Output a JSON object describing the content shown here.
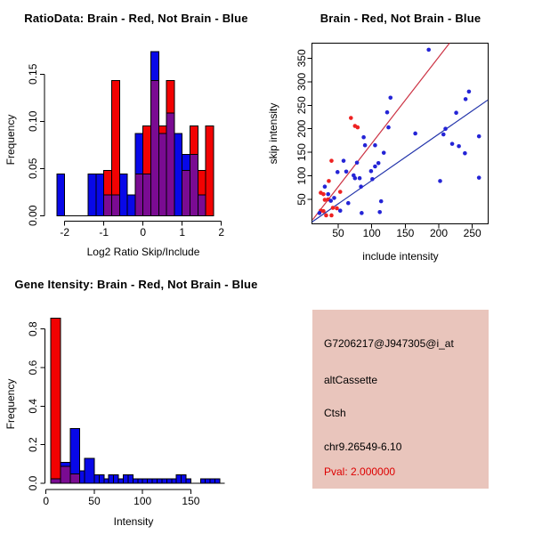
{
  "figure": {
    "background": "#ffffff",
    "colors": {
      "hist_blue": "#0808e8",
      "hist_red": "#f20202",
      "hist_overlap": "#7a0b92",
      "bar_border": "#000000",
      "scatter_blue": "#2424d6",
      "scatter_red": "#ee2222",
      "line_blue": "#2233aa",
      "line_red": "#cc3344",
      "axis": "#000000",
      "info_bg": "#e9c5bc",
      "pval_red": "#dd0000"
    }
  },
  "chart_data": [
    {
      "id": "ratio_hist",
      "type": "bar",
      "title": "RatioData: Brain - Red, Not Brain - Blue",
      "xlabel": "Log2 Ratio Skip/Include",
      "ylabel": "Frequency",
      "xticks": [
        -2,
        -1,
        0,
        1,
        2
      ],
      "xtick_labels": [
        "-2",
        "-1",
        "0",
        "1",
        "2"
      ],
      "yticks": [
        0,
        0.05,
        0.1,
        0.15
      ],
      "ytick_labels": [
        "0.00",
        "0.05",
        "0.10",
        "0.15"
      ],
      "xlim": [
        -2.45,
        2.1
      ],
      "ylim": [
        0,
        0.175
      ],
      "grid": false,
      "legend": "none",
      "series_note": "blue = Not Brain frequency, red = Brain frequency, overlap drawn purple",
      "bars": [
        {
          "x0": -2.2,
          "x1": -2.0,
          "blue": 0.044,
          "red": 0
        },
        {
          "x0": -1.4,
          "x1": -1.2,
          "blue": 0.044,
          "red": 0
        },
        {
          "x0": -1.2,
          "x1": -1.0,
          "blue": 0.044,
          "red": 0
        },
        {
          "x0": -1.0,
          "x1": -0.8,
          "blue": 0.022,
          "red": 0.048
        },
        {
          "x0": -0.8,
          "x1": -0.6,
          "blue": 0.022,
          "red": 0.143
        },
        {
          "x0": -0.6,
          "x1": -0.4,
          "blue": 0.044,
          "red": 0
        },
        {
          "x0": -0.4,
          "x1": -0.2,
          "blue": 0.022,
          "red": 0
        },
        {
          "x0": -0.2,
          "x1": 0.0,
          "blue": 0.087,
          "red": 0.044
        },
        {
          "x0": 0.0,
          "x1": 0.2,
          "blue": 0.044,
          "red": 0.095
        },
        {
          "x0": 0.2,
          "x1": 0.4,
          "blue": 0.174,
          "red": 0.143
        },
        {
          "x0": 0.4,
          "x1": 0.6,
          "blue": 0.087,
          "red": 0.095
        },
        {
          "x0": 0.6,
          "x1": 0.8,
          "blue": 0.109,
          "red": 0.143
        },
        {
          "x0": 0.8,
          "x1": 1.0,
          "blue": 0.087,
          "red": 0
        },
        {
          "x0": 1.0,
          "x1": 1.2,
          "blue": 0.065,
          "red": 0.048
        },
        {
          "x0": 1.2,
          "x1": 1.4,
          "blue": 0.065,
          "red": 0.095
        },
        {
          "x0": 1.4,
          "x1": 1.6,
          "blue": 0.022,
          "red": 0.048
        },
        {
          "x0": 1.6,
          "x1": 1.8,
          "blue": 0,
          "red": 0.095
        }
      ]
    },
    {
      "id": "skip_include_scatter",
      "type": "scatter",
      "title": "Brain - Red, Not Brain - Blue",
      "xlabel": "include intensity",
      "ylabel": "skip intensity",
      "xticks": [
        50,
        100,
        150,
        200,
        250
      ],
      "xtick_labels": [
        "50",
        "100",
        "150",
        "200",
        "250"
      ],
      "yticks": [
        50,
        100,
        150,
        200,
        250,
        300,
        350
      ],
      "ytick_labels": [
        "50",
        "100",
        "150",
        "200",
        "250",
        "300",
        "350"
      ],
      "xlim": [
        11,
        273
      ],
      "ylim": [
        -2,
        382
      ],
      "grid": false,
      "legend": "none",
      "series": [
        {
          "name": "Brain",
          "color_key": "scatter_red",
          "points": [
            [
              69,
              223
            ],
            [
              75,
              206
            ],
            [
              79,
              203
            ],
            [
              40,
              132
            ],
            [
              36,
              89
            ],
            [
              53,
              66
            ],
            [
              24,
              64
            ],
            [
              28,
              61
            ],
            [
              30,
              49
            ],
            [
              35,
              50
            ],
            [
              42,
              32
            ],
            [
              48,
              31
            ],
            [
              24,
              26
            ],
            [
              28,
              25
            ],
            [
              32,
              16
            ],
            [
              40,
              16
            ]
          ]
        },
        {
          "name": "Not Brain",
          "color_key": "scatter_blue",
          "points": [
            [
              185,
              368
            ],
            [
              245,
              279
            ],
            [
              240,
              263
            ],
            [
              128,
              266
            ],
            [
              123,
              235
            ],
            [
              125,
              203
            ],
            [
              226,
              234
            ],
            [
              165,
              190
            ],
            [
              210,
              200
            ],
            [
              207,
              188
            ],
            [
              260,
              184
            ],
            [
              220,
              168
            ],
            [
              88,
              182
            ],
            [
              90,
              165
            ],
            [
              105,
              165
            ],
            [
              230,
              163
            ],
            [
              239,
              148
            ],
            [
              118,
              149
            ],
            [
              58,
              132
            ],
            [
              78,
              128
            ],
            [
              110,
              127
            ],
            [
              105,
              120
            ],
            [
              73,
              101
            ],
            [
              75,
              95
            ],
            [
              82,
              95
            ],
            [
              49,
              108
            ],
            [
              62,
              109
            ],
            [
              99,
              110
            ],
            [
              101,
              93
            ],
            [
              84,
              77
            ],
            [
              260,
              96
            ],
            [
              202,
              89
            ],
            [
              30,
              77
            ],
            [
              35,
              61
            ],
            [
              44,
              53
            ],
            [
              39,
              47
            ],
            [
              65,
              42
            ],
            [
              114,
              46
            ],
            [
              85,
              21
            ],
            [
              112,
              23
            ],
            [
              53,
              26
            ],
            [
              22,
              21
            ]
          ]
        }
      ],
      "fit_lines": [
        {
          "name": "brain-fit",
          "color_key": "line_red",
          "x1": 12,
          "y1": 7,
          "x2": 216,
          "y2": 382
        },
        {
          "name": "not-brain-fit",
          "color_key": "line_blue",
          "x1": 11,
          "y1": 2,
          "x2": 273,
          "y2": 261
        }
      ]
    },
    {
      "id": "gene_intensity_hist",
      "type": "bar",
      "title": "Gene Itensity: Brain - Red, Not Brain - Blue",
      "xlabel": "Intensity",
      "ylabel": "Frequency",
      "xticks": [
        0,
        50,
        100,
        150
      ],
      "xtick_labels": [
        "0",
        "50",
        "100",
        "150"
      ],
      "yticks": [
        0,
        0.2,
        0.4,
        0.6,
        0.8
      ],
      "ytick_labels": [
        "0.0",
        "0.2",
        "0.4",
        "0.6",
        "0.8"
      ],
      "xlim": [
        0,
        185
      ],
      "ylim": [
        0,
        0.9
      ],
      "grid": false,
      "legend": "none",
      "series_note": "blue = Not Brain frequency, red = Brain frequency, overlap drawn purple",
      "bars": [
        {
          "x0": 5,
          "x1": 15,
          "blue": 0.022,
          "red": 0.857
        },
        {
          "x0": 15,
          "x1": 25,
          "blue": 0.109,
          "red": 0.087
        },
        {
          "x0": 25,
          "x1": 35,
          "blue": 0.283,
          "red": 0.048
        },
        {
          "x0": 35,
          "x1": 40,
          "blue": 0.065,
          "red": 0
        },
        {
          "x0": 40,
          "x1": 50,
          "blue": 0.13,
          "red": 0
        },
        {
          "x0": 50,
          "x1": 55,
          "blue": 0.043,
          "red": 0
        },
        {
          "x0": 55,
          "x1": 60,
          "blue": 0.043,
          "red": 0
        },
        {
          "x0": 60,
          "x1": 65,
          "blue": 0.022,
          "red": 0
        },
        {
          "x0": 65,
          "x1": 70,
          "blue": 0.043,
          "red": 0
        },
        {
          "x0": 70,
          "x1": 75,
          "blue": 0.043,
          "red": 0
        },
        {
          "x0": 75,
          "x1": 80,
          "blue": 0.022,
          "red": 0
        },
        {
          "x0": 80,
          "x1": 85,
          "blue": 0.043,
          "red": 0
        },
        {
          "x0": 85,
          "x1": 90,
          "blue": 0.043,
          "red": 0
        },
        {
          "x0": 90,
          "x1": 95,
          "blue": 0.022,
          "red": 0
        },
        {
          "x0": 95,
          "x1": 100,
          "blue": 0.022,
          "red": 0
        },
        {
          "x0": 100,
          "x1": 105,
          "blue": 0.022,
          "red": 0
        },
        {
          "x0": 105,
          "x1": 110,
          "blue": 0.022,
          "red": 0
        },
        {
          "x0": 110,
          "x1": 115,
          "blue": 0.022,
          "red": 0
        },
        {
          "x0": 115,
          "x1": 120,
          "blue": 0.022,
          "red": 0
        },
        {
          "x0": 120,
          "x1": 125,
          "blue": 0.022,
          "red": 0
        },
        {
          "x0": 125,
          "x1": 130,
          "blue": 0.022,
          "red": 0
        },
        {
          "x0": 130,
          "x1": 135,
          "blue": 0.022,
          "red": 0
        },
        {
          "x0": 135,
          "x1": 140,
          "blue": 0.043,
          "red": 0
        },
        {
          "x0": 140,
          "x1": 145,
          "blue": 0.043,
          "red": 0
        },
        {
          "x0": 145,
          "x1": 150,
          "blue": 0.022,
          "red": 0
        },
        {
          "x0": 160,
          "x1": 165,
          "blue": 0.022,
          "red": 0
        },
        {
          "x0": 165,
          "x1": 170,
          "blue": 0.022,
          "red": 0
        },
        {
          "x0": 170,
          "x1": 175,
          "blue": 0.022,
          "red": 0
        },
        {
          "x0": 175,
          "x1": 180,
          "blue": 0.022,
          "red": 0
        }
      ]
    }
  ],
  "info_panel": {
    "background": "#e9c5bc",
    "lines": [
      {
        "text": "G7206217@J947305@i_at",
        "color": "#000000"
      },
      {
        "text": "altCassette",
        "color": "#000000"
      },
      {
        "text": "Ctsh",
        "color": "#000000"
      },
      {
        "text": "chr9.26549-6.10",
        "color": "#000000"
      },
      {
        "text": "Pval: 2.000000",
        "color": "#dd0000"
      }
    ]
  }
}
